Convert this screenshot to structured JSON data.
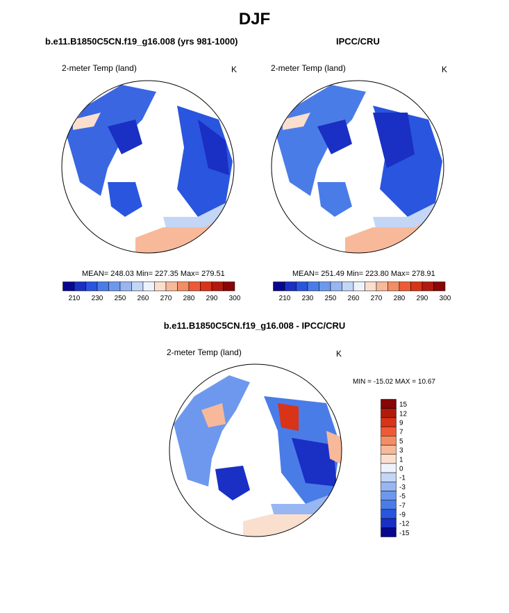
{
  "main_title": "DJF",
  "panels": [
    {
      "title": "b.e11.B1850C5CN.f19_g16.008 (yrs 981-1000)",
      "variable": "2-meter Temp (land)",
      "units": "K",
      "stats": "MEAN= 248.03  Min= 227.35  Max= 279.51",
      "colorbar_ticks": [
        "210",
        "230",
        "250",
        "260",
        "270",
        "280",
        "290",
        "300"
      ]
    },
    {
      "title": "IPCC/CRU",
      "variable": "2-meter Temp (land)",
      "units": "K",
      "stats": "MEAN= 251.49  Min= 223.80  Max= 278.91",
      "colorbar_ticks": [
        "210",
        "230",
        "250",
        "260",
        "270",
        "280",
        "290",
        "300"
      ]
    },
    {
      "title": "b.e11.B1850C5CN.f19_g16.008 - IPCC/CRU",
      "variable": "2-meter Temp (land)",
      "units": "K",
      "stats": "MIN = -15.02 MAX =  10.67",
      "colorbar_ticks": [
        "15",
        "12",
        "9",
        "7",
        "5",
        "3",
        "1",
        "0",
        "-1",
        "-3",
        "-5",
        "-7",
        "-9",
        "-12",
        "-15"
      ]
    }
  ],
  "colors": {
    "abs_palette": [
      "#08088f",
      "#1a2fc4",
      "#2a55de",
      "#4a7ce8",
      "#6d98ee",
      "#97b6f2",
      "#c3d6f6",
      "#eef3fb",
      "#fadfcf",
      "#f7b99a",
      "#f38d64",
      "#ee5a35",
      "#d93318",
      "#b11a0c",
      "#870606"
    ],
    "diff_palette": [
      "#870606",
      "#b11a0c",
      "#d93318",
      "#ee5a35",
      "#f38d64",
      "#f7b99a",
      "#fadfcf",
      "#eef3fb",
      "#c3d6f6",
      "#97b6f2",
      "#6d98ee",
      "#4a7ce8",
      "#2a55de",
      "#1a2fc4",
      "#08088f"
    ]
  }
}
